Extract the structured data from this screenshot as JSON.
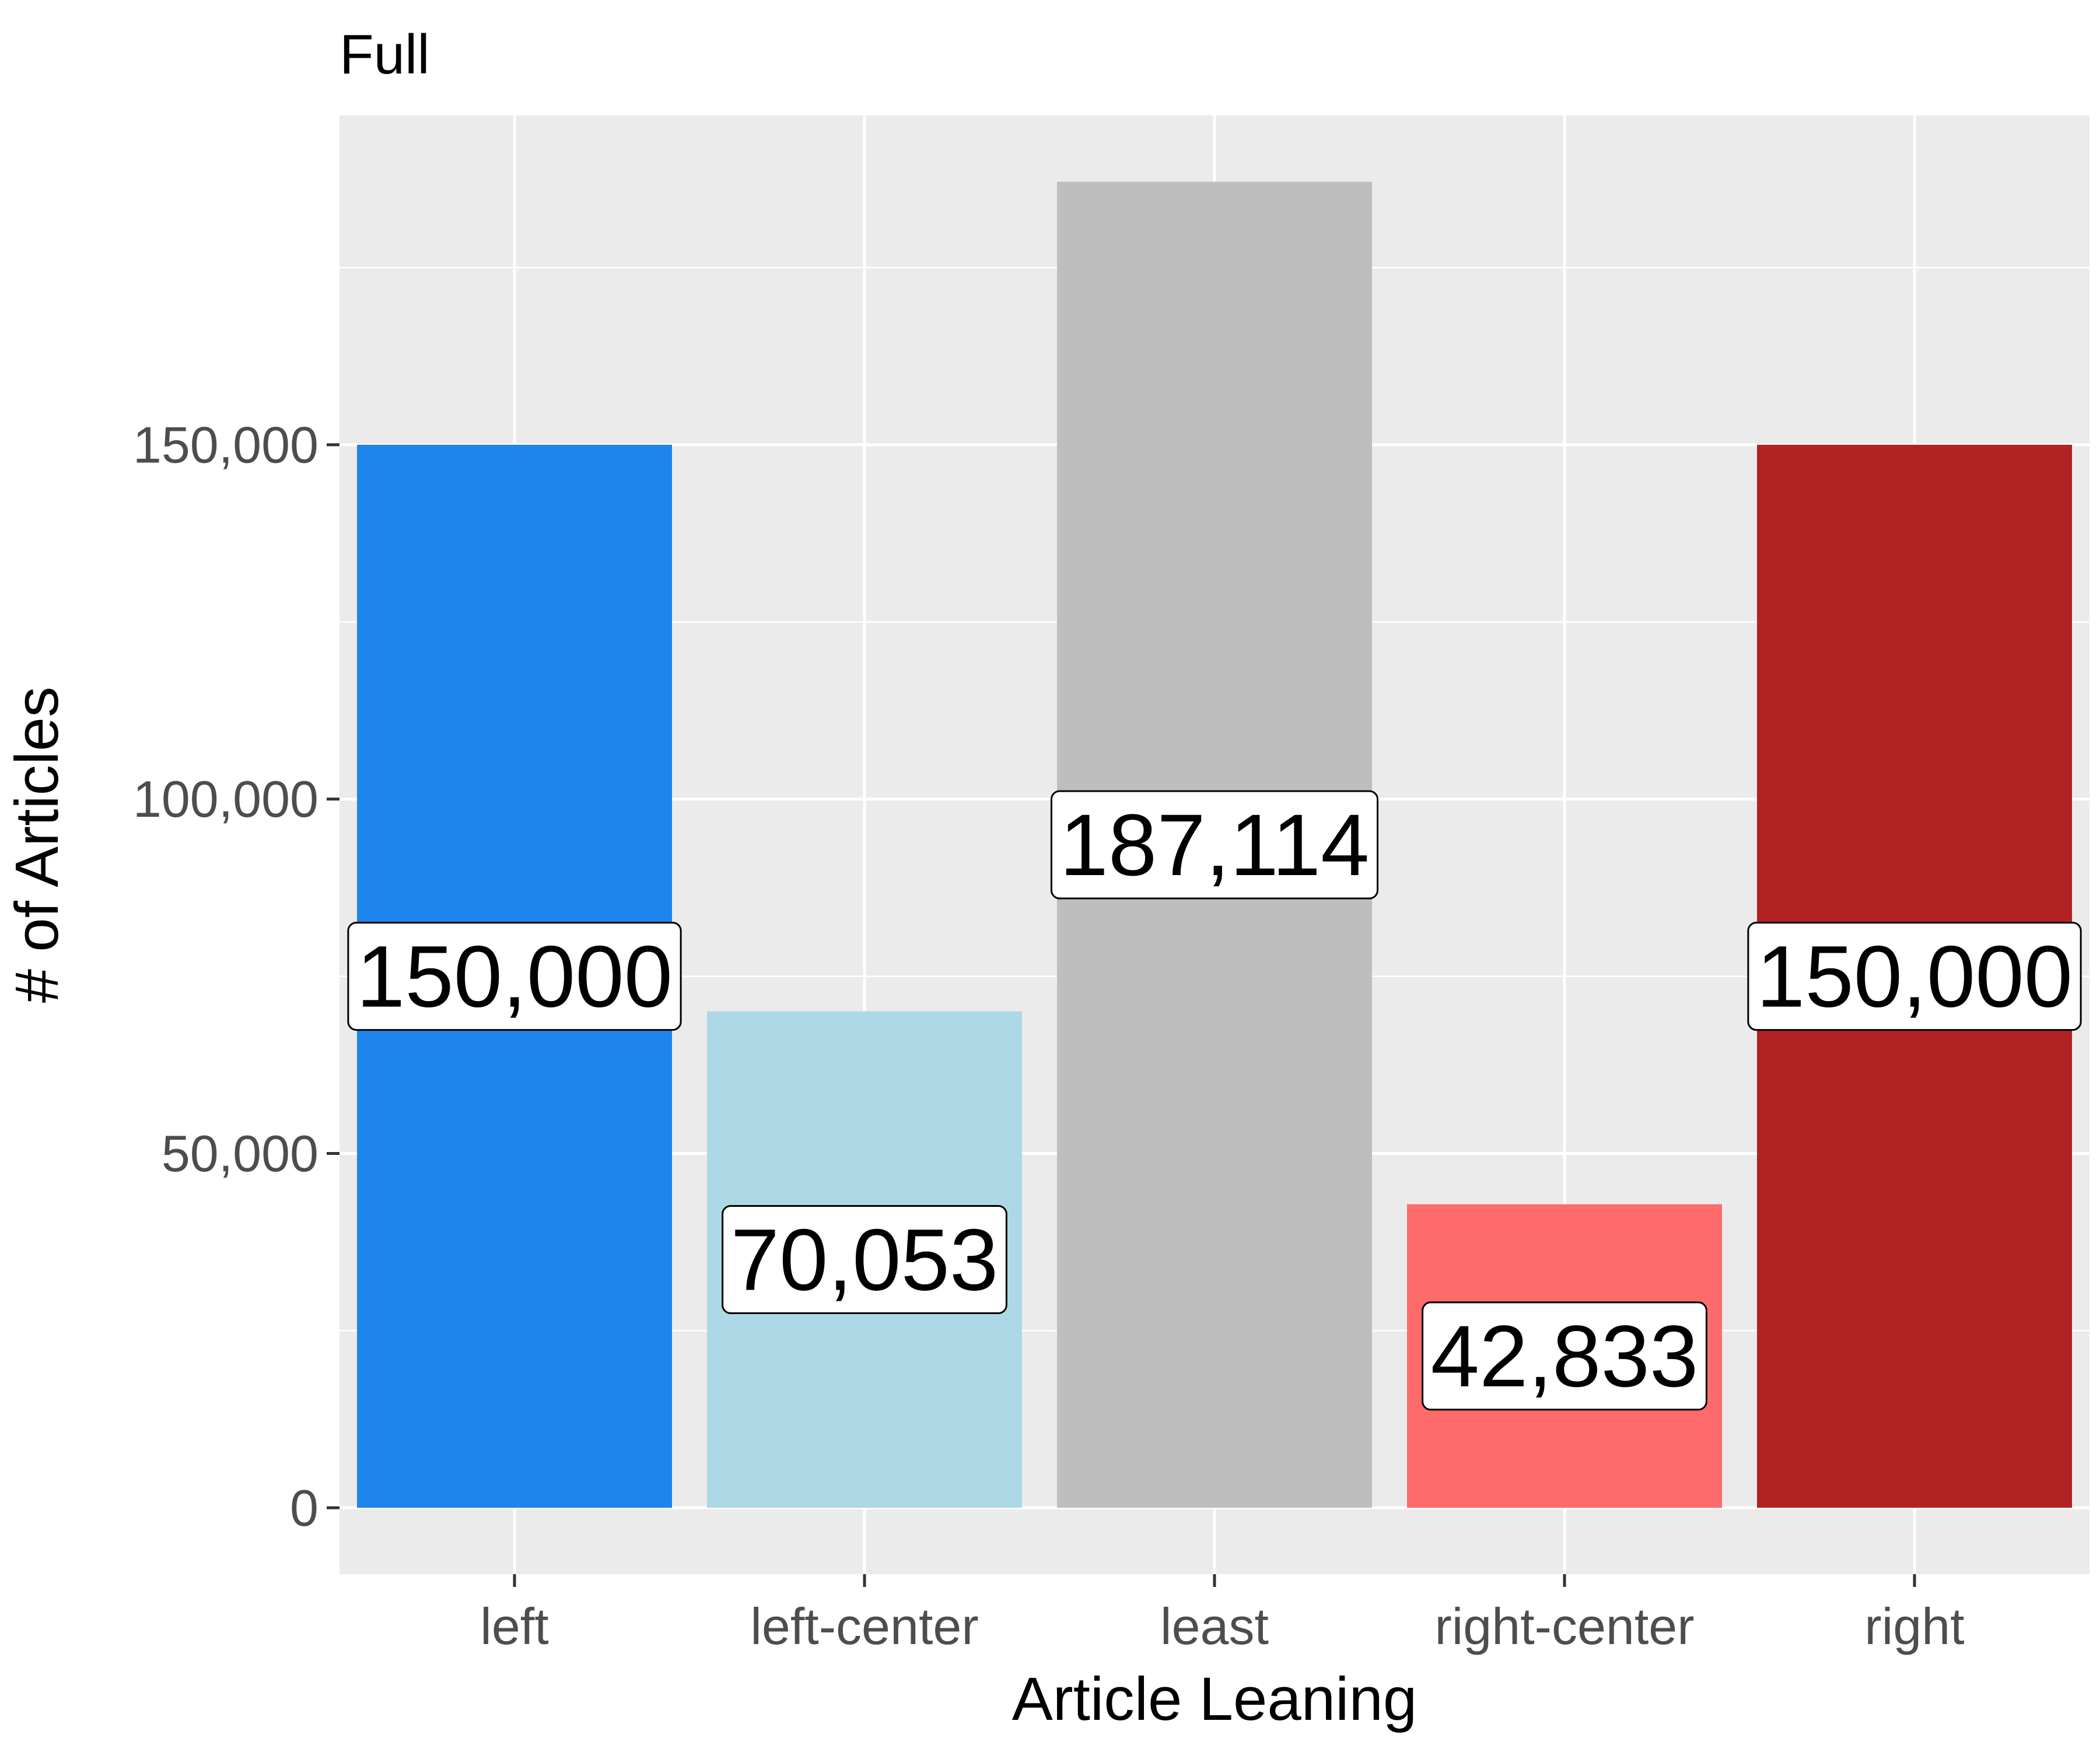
{
  "chart_data": {
    "type": "bar",
    "title": "Full",
    "xlabel": "Article Leaning",
    "ylabel": "# of Articles",
    "categories": [
      "left",
      "left-center",
      "least",
      "right-center",
      "right"
    ],
    "values": [
      150000,
      70053,
      187114,
      42833,
      150000
    ],
    "value_labels": [
      "150,000",
      "70,053",
      "187,114",
      "42,833",
      "150,000"
    ],
    "colors": [
      "#1e85ec",
      "#add8e6",
      "#bebebe",
      "#ff6b6b",
      "#b22222"
    ],
    "ylim": [
      -9355.7,
      196469.7
    ],
    "yticks": [
      0,
      50000,
      100000,
      150000
    ],
    "ytick_labels": [
      "0",
      "50,000",
      "100,000",
      "150,000"
    ],
    "grid": true,
    "panel_background": "#ebebeb",
    "legend": "none"
  }
}
